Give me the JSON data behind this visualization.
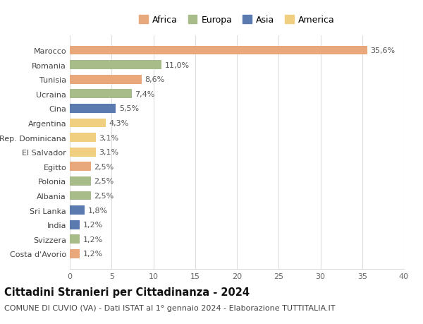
{
  "categories": [
    "Marocco",
    "Romania",
    "Tunisia",
    "Ucraina",
    "Cina",
    "Argentina",
    "Rep. Dominicana",
    "El Salvador",
    "Egitto",
    "Polonia",
    "Albania",
    "Sri Lanka",
    "India",
    "Svizzera",
    "Costa d'Avorio"
  ],
  "values": [
    35.6,
    11.0,
    8.6,
    7.4,
    5.5,
    4.3,
    3.1,
    3.1,
    2.5,
    2.5,
    2.5,
    1.8,
    1.2,
    1.2,
    1.2
  ],
  "labels": [
    "35,6%",
    "11,0%",
    "8,6%",
    "7,4%",
    "5,5%",
    "4,3%",
    "3,1%",
    "3,1%",
    "2,5%",
    "2,5%",
    "2,5%",
    "1,8%",
    "1,2%",
    "1,2%",
    "1,2%"
  ],
  "continents": [
    "Africa",
    "Europa",
    "Africa",
    "Europa",
    "Asia",
    "America",
    "America",
    "America",
    "Africa",
    "Europa",
    "Europa",
    "Asia",
    "Asia",
    "Europa",
    "Africa"
  ],
  "colors": {
    "Africa": "#E8A87C",
    "Europa": "#A8BC8A",
    "Asia": "#5B7BB0",
    "America": "#F0D080"
  },
  "legend_order": [
    "Africa",
    "Europa",
    "Asia",
    "America"
  ],
  "title": "Cittadini Stranieri per Cittadinanza - 2024",
  "subtitle": "COMUNE DI CUVIO (VA) - Dati ISTAT al 1° gennaio 2024 - Elaborazione TUTTITALIA.IT",
  "xlim": [
    0,
    40
  ],
  "xticks": [
    0,
    5,
    10,
    15,
    20,
    25,
    30,
    35,
    40
  ],
  "background_color": "#ffffff",
  "grid_color": "#dddddd",
  "label_fontsize": 8,
  "tick_fontsize": 8,
  "title_fontsize": 10.5,
  "subtitle_fontsize": 8
}
